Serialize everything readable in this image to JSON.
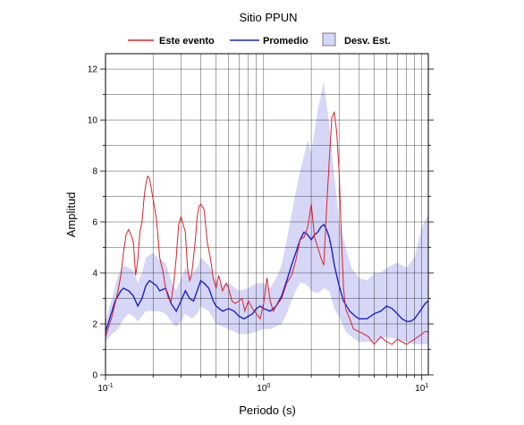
{
  "chart_data": {
    "type": "line",
    "title": "Sitio PPUN",
    "xlabel": "Periodo (s)",
    "ylabel": "Amplitud",
    "xscale": "log",
    "xlim": [
      0.1,
      11
    ],
    "ylim": [
      0,
      12.6
    ],
    "x_tick_labels": [
      {
        "value": 0.1,
        "base": "10",
        "exp": "-1"
      },
      {
        "value": 1,
        "base": "10",
        "exp": "0"
      },
      {
        "value": 10,
        "base": "10",
        "exp": "1"
      }
    ],
    "y_ticks": [
      0,
      2,
      4,
      6,
      8,
      10,
      12
    ],
    "grid": true,
    "legend_position": "top",
    "legend": [
      {
        "label": "Este evento",
        "kind": "line",
        "color": "#e0202a"
      },
      {
        "label": "Promedio",
        "kind": "line",
        "color": "#1a22cc"
      },
      {
        "label": "Desv. Est.",
        "kind": "band",
        "color": "#d6d6f7"
      }
    ],
    "series": [
      {
        "name": "Este evento",
        "color": "#e0202a",
        "x": [
          0.1,
          0.105,
          0.11,
          0.115,
          0.12,
          0.125,
          0.13,
          0.135,
          0.14,
          0.145,
          0.15,
          0.155,
          0.16,
          0.165,
          0.17,
          0.175,
          0.18,
          0.185,
          0.19,
          0.2,
          0.21,
          0.22,
          0.23,
          0.24,
          0.25,
          0.26,
          0.27,
          0.28,
          0.29,
          0.3,
          0.31,
          0.32,
          0.33,
          0.34,
          0.35,
          0.36,
          0.37,
          0.38,
          0.39,
          0.4,
          0.42,
          0.44,
          0.46,
          0.48,
          0.5,
          0.52,
          0.55,
          0.58,
          0.6,
          0.63,
          0.66,
          0.7,
          0.73,
          0.76,
          0.8,
          0.85,
          0.9,
          0.95,
          1.0,
          1.05,
          1.1,
          1.15,
          1.2,
          1.3,
          1.4,
          1.5,
          1.6,
          1.7,
          1.8,
          1.9,
          2.0,
          2.1,
          2.2,
          2.3,
          2.4,
          2.5,
          2.6,
          2.7,
          2.8,
          2.9,
          3.0,
          3.1,
          3.2,
          3.3,
          3.5,
          3.7,
          4.0,
          4.3,
          4.6,
          5.0,
          5.5,
          6.0,
          6.5,
          7.0,
          7.5,
          8.0,
          8.5,
          9.0,
          9.5,
          10.0,
          10.5,
          11.0
        ],
        "y": [
          1.5,
          1.9,
          2.3,
          2.8,
          3.3,
          3.9,
          4.8,
          5.5,
          5.7,
          5.5,
          5.2,
          3.9,
          4.5,
          5.6,
          6.0,
          6.9,
          7.5,
          7.8,
          7.7,
          6.9,
          6.1,
          4.6,
          4.1,
          3.4,
          3.0,
          2.9,
          3.6,
          4.6,
          5.9,
          6.2,
          5.9,
          5.6,
          4.2,
          3.7,
          3.9,
          4.6,
          5.3,
          6.2,
          6.6,
          6.7,
          6.5,
          5.2,
          4.6,
          3.8,
          3.4,
          3.9,
          3.3,
          3.6,
          3.4,
          2.9,
          2.8,
          2.9,
          3.0,
          2.5,
          2.9,
          2.6,
          2.4,
          2.2,
          2.8,
          3.8,
          2.9,
          2.5,
          2.7,
          3.0,
          3.6,
          3.9,
          4.5,
          5.3,
          5.4,
          5.8,
          6.7,
          5.4,
          5.0,
          4.6,
          4.3,
          6.5,
          8.4,
          10.1,
          10.3,
          9.5,
          8.0,
          5.5,
          3.4,
          2.6,
          2.2,
          1.8,
          1.7,
          1.6,
          1.5,
          1.2,
          1.5,
          1.3,
          1.2,
          1.4,
          1.3,
          1.2,
          1.3,
          1.4,
          1.5,
          1.6,
          1.7,
          1.7
        ]
      },
      {
        "name": "Promedio",
        "color": "#1a22cc",
        "x": [
          0.1,
          0.105,
          0.11,
          0.115,
          0.12,
          0.125,
          0.13,
          0.14,
          0.15,
          0.16,
          0.17,
          0.18,
          0.19,
          0.2,
          0.21,
          0.22,
          0.24,
          0.26,
          0.28,
          0.3,
          0.32,
          0.34,
          0.36,
          0.38,
          0.4,
          0.42,
          0.45,
          0.48,
          0.5,
          0.55,
          0.6,
          0.65,
          0.7,
          0.75,
          0.8,
          0.85,
          0.9,
          0.95,
          1.0,
          1.1,
          1.2,
          1.3,
          1.4,
          1.5,
          1.6,
          1.7,
          1.8,
          1.9,
          2.0,
          2.1,
          2.2,
          2.3,
          2.4,
          2.5,
          2.6,
          2.7,
          2.8,
          3.0,
          3.2,
          3.5,
          3.8,
          4.0,
          4.5,
          5.0,
          5.5,
          6.0,
          6.5,
          7.0,
          7.5,
          8.0,
          8.5,
          9.0,
          9.5,
          10.0,
          10.5,
          11.0
        ],
        "y": [
          1.7,
          2.1,
          2.5,
          2.9,
          3.1,
          3.3,
          3.4,
          3.3,
          3.1,
          2.7,
          3.0,
          3.5,
          3.7,
          3.6,
          3.5,
          3.3,
          3.4,
          2.8,
          2.5,
          2.9,
          3.3,
          3.0,
          2.9,
          3.3,
          3.7,
          3.6,
          3.4,
          2.9,
          2.7,
          2.5,
          2.6,
          2.5,
          2.3,
          2.2,
          2.3,
          2.4,
          2.6,
          2.7,
          2.6,
          2.5,
          2.7,
          3.1,
          3.7,
          4.3,
          4.8,
          5.3,
          5.6,
          5.5,
          5.3,
          5.5,
          5.6,
          5.8,
          5.9,
          5.7,
          5.4,
          4.9,
          4.3,
          3.5,
          2.9,
          2.5,
          2.3,
          2.2,
          2.2,
          2.4,
          2.5,
          2.7,
          2.6,
          2.4,
          2.2,
          2.1,
          2.1,
          2.2,
          2.4,
          2.6,
          2.8,
          2.9
        ]
      },
      {
        "name": "Desv. Est.",
        "color": "#d6d6f7",
        "x": [
          0.1,
          0.11,
          0.12,
          0.13,
          0.14,
          0.15,
          0.16,
          0.17,
          0.18,
          0.2,
          0.22,
          0.24,
          0.26,
          0.28,
          0.3,
          0.32,
          0.35,
          0.38,
          0.4,
          0.45,
          0.5,
          0.55,
          0.6,
          0.7,
          0.8,
          0.9,
          1.0,
          1.1,
          1.2,
          1.3,
          1.4,
          1.5,
          1.6,
          1.7,
          1.8,
          1.9,
          2.0,
          2.2,
          2.4,
          2.6,
          2.8,
          3.0,
          3.3,
          3.6,
          4.0,
          4.5,
          5.0,
          5.5,
          6.0,
          7.0,
          8.0,
          9.0,
          10.0,
          11.0
        ],
        "upper": [
          2.1,
          3.0,
          3.9,
          4.3,
          4.2,
          4.1,
          3.6,
          4.0,
          4.6,
          4.8,
          4.5,
          4.4,
          3.7,
          3.3,
          3.8,
          4.2,
          3.9,
          4.2,
          4.6,
          4.3,
          3.7,
          3.5,
          3.6,
          3.3,
          3.4,
          3.6,
          3.6,
          3.4,
          3.8,
          4.3,
          5.3,
          6.3,
          7.2,
          8.0,
          8.6,
          9.2,
          8.7,
          10.4,
          11.5,
          9.8,
          7.8,
          6.0,
          5.0,
          4.2,
          3.8,
          3.7,
          4.0,
          4.0,
          4.2,
          4.4,
          4.2,
          4.6,
          5.8,
          6.3
        ],
        "lower": [
          1.3,
          1.6,
          1.8,
          2.2,
          2.4,
          2.3,
          2.1,
          2.3,
          2.5,
          2.5,
          2.5,
          2.4,
          2.1,
          1.9,
          2.1,
          2.4,
          2.2,
          2.4,
          2.7,
          2.5,
          2.0,
          1.9,
          1.8,
          1.6,
          1.6,
          1.7,
          1.8,
          1.8,
          1.9,
          2.0,
          2.4,
          2.9,
          3.3,
          3.6,
          3.6,
          3.5,
          3.3,
          3.2,
          3.4,
          3.3,
          2.6,
          2.3,
          1.7,
          1.5,
          1.3,
          1.3,
          1.3,
          1.4,
          1.5,
          1.4,
          1.3,
          1.2,
          1.2,
          1.2
        ]
      }
    ]
  }
}
